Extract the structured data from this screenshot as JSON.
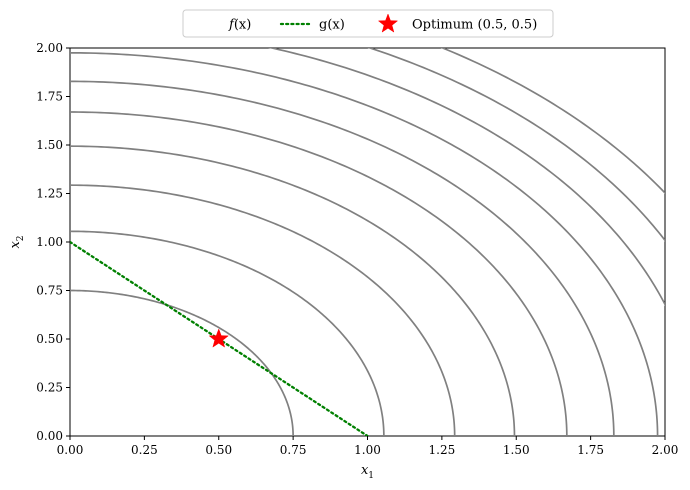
{
  "chart_data": {
    "type": "line",
    "xlabel": "x",
    "xlabel_sub": "1",
    "ylabel": "x",
    "ylabel_sub": "2",
    "xlim": [
      0,
      2
    ],
    "ylim": [
      0,
      2
    ],
    "xticks": [
      "0.00",
      "0.25",
      "0.50",
      "0.75",
      "1.00",
      "1.25",
      "1.50",
      "1.75",
      "2.00"
    ],
    "yticks": [
      "0.00",
      "0.25",
      "0.50",
      "0.75",
      "1.00",
      "1.25",
      "1.50",
      "1.75",
      "2.00"
    ],
    "grid": false,
    "legend_position": "top-center-outside",
    "legend": [
      {
        "label_prefix": "f",
        "label_suffix": "(x)",
        "style": "contour"
      },
      {
        "label": "g(x)",
        "style": "dotted-line"
      },
      {
        "label": "Optimum (0.5, 0.5)",
        "style": "star-marker"
      }
    ],
    "series": [
      {
        "name": "f(x)",
        "kind": "contours",
        "color": "#808080",
        "radii": [
          0.75,
          1.055,
          1.293,
          1.494,
          1.67,
          1.828,
          1.975,
          2.112,
          2.24,
          2.36
        ]
      },
      {
        "name": "g(x)",
        "kind": "line",
        "color": "#008000",
        "x": [
          0,
          1
        ],
        "y": [
          1,
          0
        ]
      },
      {
        "name": "Optimum (0.5, 0.5)",
        "kind": "point",
        "color": "#ff0000",
        "x": [
          0.5
        ],
        "y": [
          0.5
        ]
      }
    ]
  }
}
